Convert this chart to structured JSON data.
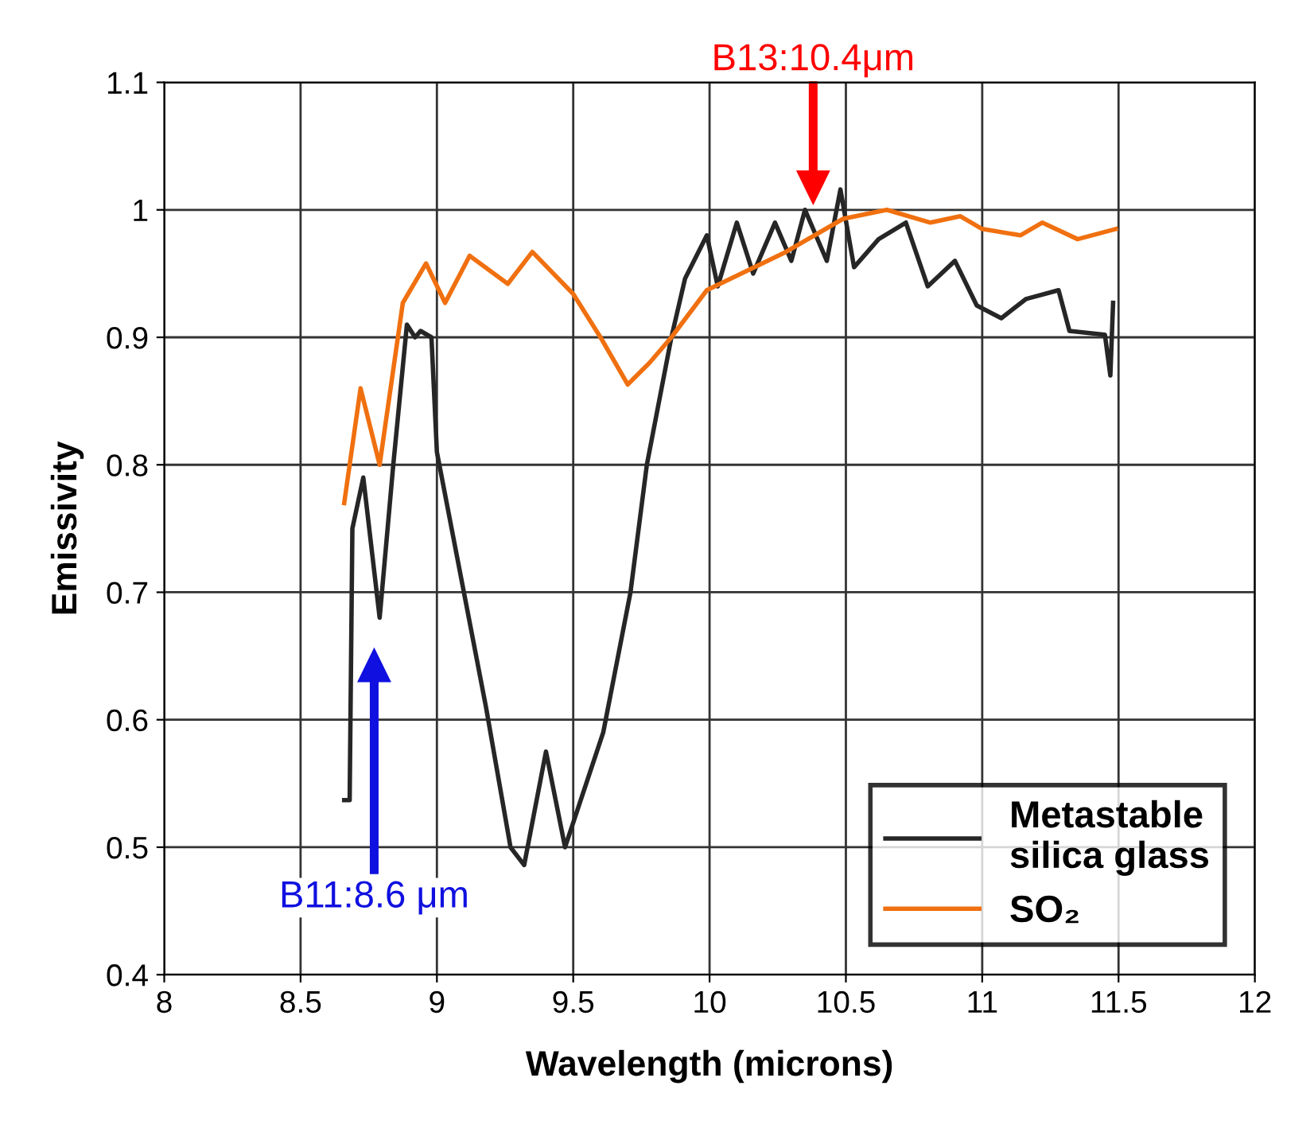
{
  "chart_data": {
    "type": "line",
    "xlabel": "Wavelength (microns)",
    "ylabel": "Emissivity",
    "xlim": [
      8,
      12
    ],
    "xticks": [
      8,
      8.5,
      9,
      9.5,
      10,
      10.5,
      11,
      11.5,
      12
    ],
    "ylim": [
      0.4,
      1.1
    ],
    "yticks": [
      0.4,
      0.5,
      0.6,
      0.7,
      0.8,
      0.9,
      1,
      1.1
    ],
    "grid": true,
    "legend": "bottom right",
    "marker": "none",
    "line_style": "solid",
    "series": [
      {
        "name": "Metastable\nsilica glass",
        "color": "#262626",
        "x": [
          8.66,
          8.68,
          8.69,
          8.73,
          8.79,
          8.84,
          8.89,
          8.92,
          8.94,
          8.98,
          9.0,
          9.09,
          9.18,
          9.27,
          9.32,
          9.4,
          9.47,
          9.61,
          9.71,
          9.77,
          9.86,
          9.91,
          9.99,
          10.03,
          10.1,
          10.16,
          10.24,
          10.3,
          10.35,
          10.43,
          10.48,
          10.53,
          10.62,
          10.72,
          10.8,
          10.9,
          10.98,
          11.07,
          11.16,
          11.28,
          11.32,
          11.45,
          11.47,
          11.48
        ],
        "values": [
          0.537,
          0.537,
          0.75,
          0.79,
          0.68,
          0.8,
          0.91,
          0.9,
          0.905,
          0.9,
          0.81,
          0.71,
          0.61,
          0.5,
          0.486,
          0.575,
          0.5,
          0.59,
          0.7,
          0.8,
          0.9,
          0.946,
          0.98,
          0.94,
          0.99,
          0.95,
          0.99,
          0.96,
          1.0,
          0.96,
          1.016,
          0.955,
          0.977,
          0.99,
          0.94,
          0.96,
          0.925,
          0.915,
          0.93,
          0.937,
          0.905,
          0.902,
          0.87,
          0.927
        ]
      },
      {
        "name": "SO₂",
        "color": "#f07010",
        "x": [
          8.66,
          8.72,
          8.79,
          8.875,
          8.96,
          9.03,
          9.12,
          9.26,
          9.35,
          9.5,
          9.6,
          9.7,
          9.78,
          9.86,
          9.99,
          10.28,
          10.49,
          10.65,
          10.81,
          10.92,
          11.0,
          11.14,
          11.22,
          11.35,
          11.49
        ],
        "values": [
          0.77,
          0.86,
          0.8,
          0.927,
          0.958,
          0.927,
          0.964,
          0.942,
          0.967,
          0.934,
          0.9,
          0.863,
          0.88,
          0.9,
          0.937,
          0.967,
          0.993,
          1.0,
          0.99,
          0.995,
          0.985,
          0.98,
          0.99,
          0.977,
          0.985
        ]
      }
    ],
    "annotations": [
      "B13:10.4μm",
      "B11:8.6 μm"
    ]
  }
}
